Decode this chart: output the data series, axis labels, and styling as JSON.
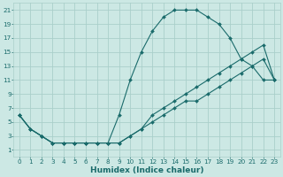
{
  "xlabel": "Humidex (Indice chaleur)",
  "background_color": "#cce8e4",
  "grid_color": "#aacfca",
  "line_color": "#1a6b6b",
  "xlim": [
    -0.5,
    23.5
  ],
  "ylim": [
    0,
    22
  ],
  "xticks": [
    0,
    1,
    2,
    3,
    4,
    5,
    6,
    7,
    8,
    9,
    10,
    11,
    12,
    13,
    14,
    15,
    16,
    17,
    18,
    19,
    20,
    21,
    22,
    23
  ],
  "yticks": [
    1,
    3,
    5,
    7,
    9,
    11,
    13,
    15,
    17,
    19,
    21
  ],
  "line1_x": [
    0,
    1,
    2,
    3,
    4,
    5,
    6,
    7,
    8,
    9,
    10,
    11,
    12,
    13,
    14,
    15,
    16,
    17,
    18,
    19,
    20,
    21,
    22,
    23
  ],
  "line1_y": [
    6,
    4,
    3,
    2,
    2,
    2,
    2,
    2,
    2,
    6,
    11,
    15,
    18,
    20,
    21,
    21,
    21,
    20,
    19,
    17,
    14,
    13,
    11,
    11
  ],
  "line2_x": [
    0,
    1,
    2,
    3,
    4,
    5,
    6,
    7,
    8,
    9,
    10,
    11,
    12,
    13,
    14,
    15,
    16,
    17,
    18,
    19,
    20,
    21,
    22,
    23
  ],
  "line2_y": [
    6,
    4,
    3,
    2,
    2,
    2,
    2,
    2,
    2,
    2,
    3,
    4,
    6,
    7,
    8,
    9,
    10,
    11,
    12,
    13,
    14,
    15,
    16,
    11
  ],
  "line3_x": [
    0,
    1,
    2,
    3,
    4,
    5,
    6,
    7,
    8,
    9,
    10,
    11,
    12,
    13,
    14,
    15,
    16,
    17,
    18,
    19,
    20,
    21,
    22,
    23
  ],
  "line3_y": [
    6,
    4,
    3,
    2,
    2,
    2,
    2,
    2,
    2,
    2,
    3,
    4,
    5,
    6,
    7,
    8,
    8,
    9,
    10,
    11,
    12,
    13,
    14,
    11
  ],
  "tick_fontsize": 5.2,
  "xlabel_fontsize": 6.5,
  "marker": "D",
  "markersize": 2.0
}
